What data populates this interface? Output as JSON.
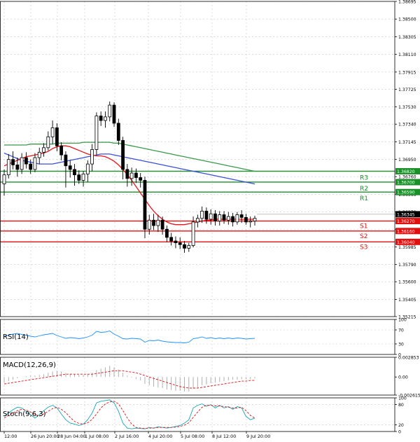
{
  "chart_data": {
    "type": "candlestick",
    "main": {
      "y_ticks": [
        "1.38695",
        "1.38500",
        "1.38305",
        "1.38110",
        "1.37915",
        "1.37725",
        "1.37530",
        "1.37340",
        "1.37145",
        "1.36950",
        "1.36760",
        "1.36565",
        "1.36370",
        "1.36175",
        "1.35985",
        "1.35790",
        "1.35600",
        "1.35405",
        "1.35215"
      ],
      "ylim": [
        1.35215,
        1.38695
      ],
      "candles": [
        {
          "o": 1.3668,
          "h": 1.3684,
          "l": 1.3655,
          "c": 1.3678
        },
        {
          "o": 1.3678,
          "h": 1.3701,
          "l": 1.3674,
          "c": 1.3695
        },
        {
          "o": 1.3695,
          "h": 1.3704,
          "l": 1.3684,
          "c": 1.3689
        },
        {
          "o": 1.3689,
          "h": 1.3697,
          "l": 1.3676,
          "c": 1.3684
        },
        {
          "o": 1.3684,
          "h": 1.3702,
          "l": 1.3679,
          "c": 1.3697
        },
        {
          "o": 1.3697,
          "h": 1.3703,
          "l": 1.3685,
          "c": 1.369
        },
        {
          "o": 1.369,
          "h": 1.3695,
          "l": 1.3679,
          "c": 1.3684
        },
        {
          "o": 1.3684,
          "h": 1.3702,
          "l": 1.3681,
          "c": 1.3697
        },
        {
          "o": 1.3697,
          "h": 1.3708,
          "l": 1.369,
          "c": 1.3703
        },
        {
          "o": 1.3703,
          "h": 1.3713,
          "l": 1.3698,
          "c": 1.3708
        },
        {
          "o": 1.3708,
          "h": 1.3726,
          "l": 1.3705,
          "c": 1.372
        },
        {
          "o": 1.372,
          "h": 1.3738,
          "l": 1.3712,
          "c": 1.373
        },
        {
          "o": 1.373,
          "h": 1.3735,
          "l": 1.3704,
          "c": 1.371
        },
        {
          "o": 1.371,
          "h": 1.3714,
          "l": 1.3694,
          "c": 1.37
        },
        {
          "o": 1.37,
          "h": 1.3704,
          "l": 1.3664,
          "c": 1.3688
        },
        {
          "o": 1.3688,
          "h": 1.3694,
          "l": 1.3675,
          "c": 1.3684
        },
        {
          "o": 1.3684,
          "h": 1.369,
          "l": 1.3666,
          "c": 1.3678
        },
        {
          "o": 1.3678,
          "h": 1.3683,
          "l": 1.3668,
          "c": 1.3672
        },
        {
          "o": 1.3672,
          "h": 1.3682,
          "l": 1.3665,
          "c": 1.3679
        },
        {
          "o": 1.3679,
          "h": 1.3694,
          "l": 1.367,
          "c": 1.369
        },
        {
          "o": 1.369,
          "h": 1.3712,
          "l": 1.3682,
          "c": 1.3706
        },
        {
          "o": 1.3706,
          "h": 1.3747,
          "l": 1.37,
          "c": 1.3743
        },
        {
          "o": 1.3743,
          "h": 1.3748,
          "l": 1.3732,
          "c": 1.3738
        },
        {
          "o": 1.3738,
          "h": 1.3748,
          "l": 1.373,
          "c": 1.3742
        },
        {
          "o": 1.3742,
          "h": 1.3759,
          "l": 1.3737,
          "c": 1.3755
        },
        {
          "o": 1.3755,
          "h": 1.3758,
          "l": 1.3731,
          "c": 1.3735
        },
        {
          "o": 1.3735,
          "h": 1.374,
          "l": 1.3711,
          "c": 1.3716
        },
        {
          "o": 1.3716,
          "h": 1.372,
          "l": 1.3673,
          "c": 1.3684
        },
        {
          "o": 1.3684,
          "h": 1.369,
          "l": 1.3665,
          "c": 1.3674
        },
        {
          "o": 1.3674,
          "h": 1.3686,
          "l": 1.3666,
          "c": 1.368
        },
        {
          "o": 1.368,
          "h": 1.3685,
          "l": 1.3669,
          "c": 1.3675
        },
        {
          "o": 1.3675,
          "h": 1.368,
          "l": 1.3664,
          "c": 1.3672
        },
        {
          "o": 1.3672,
          "h": 1.3676,
          "l": 1.3608,
          "c": 1.3618
        },
        {
          "o": 1.3618,
          "h": 1.3634,
          "l": 1.3612,
          "c": 1.3628
        },
        {
          "o": 1.3628,
          "h": 1.3635,
          "l": 1.3617,
          "c": 1.3622
        },
        {
          "o": 1.3622,
          "h": 1.3634,
          "l": 1.3615,
          "c": 1.3628
        },
        {
          "o": 1.3628,
          "h": 1.3632,
          "l": 1.3612,
          "c": 1.3618
        },
        {
          "o": 1.3618,
          "h": 1.3622,
          "l": 1.3604,
          "c": 1.3609
        },
        {
          "o": 1.3609,
          "h": 1.3614,
          "l": 1.36,
          "c": 1.3605
        },
        {
          "o": 1.3605,
          "h": 1.361,
          "l": 1.3597,
          "c": 1.3603
        },
        {
          "o": 1.3603,
          "h": 1.3609,
          "l": 1.3596,
          "c": 1.3601
        },
        {
          "o": 1.3601,
          "h": 1.3605,
          "l": 1.3592,
          "c": 1.3597
        },
        {
          "o": 1.3597,
          "h": 1.3603,
          "l": 1.3593,
          "c": 1.36
        },
        {
          "o": 1.36,
          "h": 1.3632,
          "l": 1.3598,
          "c": 1.3626
        },
        {
          "o": 1.3626,
          "h": 1.3634,
          "l": 1.362,
          "c": 1.363
        },
        {
          "o": 1.363,
          "h": 1.3643,
          "l": 1.3625,
          "c": 1.3638
        },
        {
          "o": 1.3638,
          "h": 1.3642,
          "l": 1.3624,
          "c": 1.3629
        },
        {
          "o": 1.3629,
          "h": 1.364,
          "l": 1.3623,
          "c": 1.3635
        },
        {
          "o": 1.3635,
          "h": 1.3639,
          "l": 1.3622,
          "c": 1.3627
        },
        {
          "o": 1.3627,
          "h": 1.3638,
          "l": 1.3622,
          "c": 1.3634
        },
        {
          "o": 1.3634,
          "h": 1.3638,
          "l": 1.3624,
          "c": 1.3628
        },
        {
          "o": 1.3628,
          "h": 1.3637,
          "l": 1.3623,
          "c": 1.3632
        },
        {
          "o": 1.3632,
          "h": 1.3636,
          "l": 1.3621,
          "c": 1.3626
        },
        {
          "o": 1.3626,
          "h": 1.3637,
          "l": 1.3623,
          "c": 1.3634
        },
        {
          "o": 1.3634,
          "h": 1.3639,
          "l": 1.3625,
          "c": 1.3631
        },
        {
          "o": 1.3631,
          "h": 1.3635,
          "l": 1.3623,
          "c": 1.3626
        },
        {
          "o": 1.3626,
          "h": 1.3632,
          "l": 1.362,
          "c": 1.3627
        },
        {
          "o": 1.3627,
          "h": 1.3633,
          "l": 1.3622,
          "c": 1.363
        }
      ],
      "ma_fast": [
        1.3688,
        1.369,
        1.3692,
        1.3694,
        1.3696,
        1.3698,
        1.3699,
        1.37,
        1.3701,
        1.3702,
        1.3704,
        1.3707,
        1.3709,
        1.371,
        1.371,
        1.3709,
        1.3707,
        1.3705,
        1.3703,
        1.3701,
        1.37,
        1.3699,
        1.3699,
        1.3698,
        1.3696,
        1.3693,
        1.3689,
        1.3684,
        1.3678,
        1.3672,
        1.3665,
        1.3658,
        1.3651,
        1.3644,
        1.3638,
        1.3633,
        1.3629,
        1.3626,
        1.3624,
        1.3623,
        1.3623,
        1.3623,
        1.3624,
        1.3625,
        1.3626,
        1.3627,
        1.3628,
        1.3628,
        1.3629,
        1.3629,
        1.3629,
        1.3629,
        1.3629,
        1.3629,
        1.3629,
        1.3629,
        1.3629,
        1.3629
      ],
      "ma_mid": [
        1.3702,
        1.37,
        1.3698,
        1.3696,
        1.3694,
        1.3693,
        1.3692,
        1.3691,
        1.369,
        1.369,
        1.369,
        1.369,
        1.3691,
        1.3692,
        1.3693,
        1.3694,
        1.3695,
        1.3696,
        1.3697,
        1.3698,
        1.3699,
        1.37,
        1.3701,
        1.3701,
        1.3701,
        1.37,
        1.3699,
        1.3698,
        1.3697,
        1.3696,
        1.3695,
        1.3694,
        1.3693,
        1.3692,
        1.3691,
        1.369,
        1.3689,
        1.3688,
        1.3687,
        1.3686,
        1.3685,
        1.3684,
        1.3683,
        1.3682,
        1.3681,
        1.368,
        1.3679,
        1.3678,
        1.3677,
        1.3676,
        1.3675,
        1.3674,
        1.3673,
        1.3672,
        1.3671,
        1.367,
        1.3669,
        1.3668
      ],
      "ma_slow": [
        1.3711,
        1.3711,
        1.3711,
        1.3711,
        1.3711,
        1.3711,
        1.3712,
        1.3712,
        1.3712,
        1.3712,
        1.3712,
        1.3712,
        1.3713,
        1.3713,
        1.3713,
        1.3713,
        1.3713,
        1.3713,
        1.3714,
        1.3714,
        1.3714,
        1.3714,
        1.3714,
        1.3714,
        1.3714,
        1.3713,
        1.3713,
        1.3712,
        1.3711,
        1.371,
        1.3709,
        1.3708,
        1.3707,
        1.3706,
        1.3705,
        1.3704,
        1.3703,
        1.3702,
        1.3701,
        1.37,
        1.3699,
        1.3698,
        1.3697,
        1.3696,
        1.3695,
        1.3694,
        1.3693,
        1.3692,
        1.3691,
        1.369,
        1.3689,
        1.3688,
        1.3687,
        1.3686,
        1.3685,
        1.3684,
        1.3683,
        1.3682
      ],
      "ma_fast_color": "#e8151a",
      "ma_mid_color": "#3b4fd6",
      "ma_slow_color": "#3a9a4a",
      "levels": [
        {
          "name": "R3",
          "value": 1.3682,
          "label": "1.36820",
          "color": "#1b8f2a"
        },
        {
          "name": "R2",
          "value": 1.367,
          "label": "1.36700",
          "color": "#1b8f2a"
        },
        {
          "name": "R1",
          "value": 1.3659,
          "label": "1.36590",
          "color": "#1b8f2a"
        },
        {
          "name": "S1",
          "value": 1.3627,
          "label": "1.36270",
          "color": "#e01010"
        },
        {
          "name": "S2",
          "value": 1.3616,
          "label": "1.36160",
          "color": "#e01010"
        },
        {
          "name": "S3",
          "value": 1.3604,
          "label": "1.36040",
          "color": "#e01010"
        }
      ],
      "current_price": {
        "value": 1.36345,
        "label": "1.36345"
      }
    },
    "x_labels": [
      "12:00",
      "26 Jun 20:00",
      "28 Jun 04:00",
      "1 Jul 08:00",
      "2 Jul 16:00",
      "4 Jul 20:00",
      "5 Jul 08:00",
      "8 Jul 12:00",
      "9 Jul 20:00"
    ],
    "rsi": {
      "title": "RSI(14)",
      "ticks": [
        "100",
        "70",
        "30",
        "0"
      ],
      "ylim": [
        0,
        100
      ],
      "values": [
        52,
        55,
        58,
        60,
        57,
        55,
        52,
        50,
        53,
        56,
        58,
        60,
        54,
        50,
        46,
        48,
        47,
        45,
        47,
        50,
        55,
        66,
        63,
        64,
        67,
        58,
        52,
        45,
        44,
        46,
        45,
        44,
        35,
        40,
        39,
        41,
        38,
        36,
        35,
        34,
        34,
        33,
        35,
        45,
        47,
        50,
        46,
        48,
        45,
        47,
        45,
        47,
        45,
        47,
        46,
        44,
        45,
        46
      ],
      "color": "#1e90ff"
    },
    "macd": {
      "title": "MACD(12,26,9)",
      "ticks": [
        "0.002853",
        "0.00",
        "-0.002615"
      ],
      "ylim": [
        -0.002615,
        0.002853
      ],
      "hist": [
        -0.0008,
        -0.0006,
        -0.0004,
        -0.0002,
        0.0,
        0.0001,
        0.0002,
        0.0002,
        0.0003,
        0.0004,
        0.0006,
        0.0008,
        0.0009,
        0.0008,
        0.0006,
        0.0005,
        0.0004,
        0.0003,
        0.0003,
        0.0004,
        0.0006,
        0.001,
        0.0012,
        0.0014,
        0.0016,
        0.0014,
        0.0011,
        0.0006,
        0.0002,
        -0.0001,
        -0.0003,
        -0.0005,
        -0.001,
        -0.0012,
        -0.0014,
        -0.0015,
        -0.0016,
        -0.0018,
        -0.0019,
        -0.002,
        -0.002,
        -0.0021,
        -0.0021,
        -0.0017,
        -0.0015,
        -0.0012,
        -0.0011,
        -0.0009,
        -0.0008,
        -0.0007,
        -0.0006,
        -0.0005,
        -0.0004,
        -0.0004,
        -0.0003,
        -0.0003,
        -0.0003,
        -0.0002
      ],
      "signal": [
        -0.001,
        -0.0009,
        -0.0008,
        -0.0007,
        -0.0006,
        -0.0005,
        -0.0004,
        -0.0003,
        -0.0002,
        -0.0001,
        0.0,
        0.0001,
        0.0002,
        0.0003,
        0.0004,
        0.0004,
        0.0004,
        0.0004,
        0.0004,
        0.0004,
        0.0004,
        0.0005,
        0.0006,
        0.0007,
        0.0008,
        0.0009,
        0.0009,
        0.0009,
        0.0008,
        0.0007,
        0.0006,
        0.0004,
        0.0002,
        0.0,
        -0.0002,
        -0.0004,
        -0.0006,
        -0.0008,
        -0.001,
        -0.0012,
        -0.0014,
        -0.0015,
        -0.0016,
        -0.0016,
        -0.0016,
        -0.0015,
        -0.0014,
        -0.0013,
        -0.0012,
        -0.0011,
        -0.001,
        -0.0009,
        -0.0008,
        -0.0007,
        -0.0006,
        -0.0006,
        -0.0005,
        -0.0005
      ],
      "hist_color": "#b0b0b0",
      "signal_color": "#e01010"
    },
    "stoch": {
      "title": "Stoch(9,6,3)",
      "ticks": [
        "100",
        "80",
        "20",
        "0"
      ],
      "ylim": [
        0,
        100
      ],
      "k": [
        45,
        55,
        65,
        72,
        70,
        60,
        50,
        40,
        50,
        62,
        72,
        78,
        70,
        52,
        35,
        25,
        22,
        18,
        22,
        35,
        55,
        85,
        90,
        92,
        94,
        85,
        60,
        25,
        10,
        8,
        10,
        9,
        8,
        12,
        10,
        14,
        12,
        10,
        12,
        15,
        18,
        25,
        35,
        70,
        78,
        82,
        75,
        80,
        70,
        78,
        70,
        74,
        66,
        74,
        70,
        45,
        35,
        40
      ],
      "d": [
        40,
        48,
        55,
        62,
        66,
        64,
        58,
        50,
        46,
        52,
        60,
        68,
        72,
        66,
        56,
        42,
        30,
        24,
        22,
        26,
        36,
        52,
        70,
        82,
        88,
        90,
        82,
        62,
        40,
        22,
        12,
        10,
        9,
        10,
        10,
        12,
        12,
        12,
        12,
        13,
        15,
        19,
        26,
        42,
        58,
        72,
        78,
        78,
        76,
        76,
        74,
        72,
        70,
        70,
        72,
        62,
        48,
        40
      ],
      "k_color": "#1aa6b7",
      "d_color": "#e01010"
    }
  }
}
